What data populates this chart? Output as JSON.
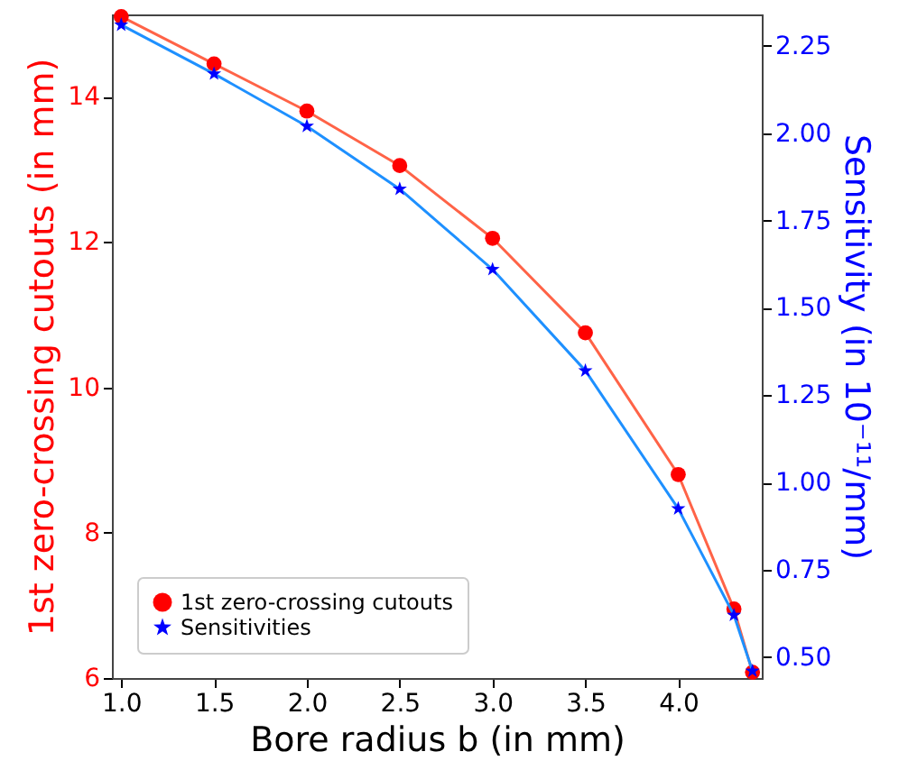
{
  "chart_data": {
    "type": "line",
    "xlabel": "Bore radius b (in mm)",
    "ylabel": "1st zero-crossing cutouts (in mm)",
    "y2label": "Sensitivity (in 10⁻¹¹/mm)",
    "x": [
      1.0,
      1.5,
      2.0,
      2.5,
      3.0,
      3.5,
      4.0,
      4.3,
      4.4
    ],
    "series": [
      {
        "type": "line",
        "color": "#ff6347",
        "marker": "none",
        "values": [
          15.1,
          14.45,
          13.8,
          13.05,
          12.05,
          10.75,
          8.8,
          6.95,
          6.08
        ]
      },
      {
        "type": "scatter",
        "name": "1st zero-crossing cutouts",
        "color": "#ff0000",
        "marker": "circle",
        "values": [
          15.1,
          14.45,
          13.8,
          13.05,
          12.05,
          10.75,
          8.8,
          6.95,
          6.08
        ]
      },
      {
        "type": "line",
        "axis": "y2",
        "color": "#1e90ff",
        "marker": "none",
        "values": [
          2.31,
          2.17,
          2.02,
          1.84,
          1.61,
          1.32,
          0.925,
          0.62,
          0.46
        ]
      },
      {
        "type": "scatter",
        "axis": "y2",
        "name": "Sensitivities",
        "color": "#0000ff",
        "marker": "star",
        "values": [
          2.31,
          2.17,
          2.02,
          1.84,
          1.61,
          1.32,
          0.925,
          0.62,
          0.46
        ]
      }
    ],
    "xlim": [
      0.95,
      4.45
    ],
    "xticks": [
      {
        "value": 1,
        "label": "1.0"
      },
      {
        "value": 1.5,
        "label": "1.5"
      },
      {
        "value": 2,
        "label": "2.0"
      },
      {
        "value": 2.5,
        "label": "2.5"
      },
      {
        "value": 3,
        "label": "3.0"
      },
      {
        "value": 3.5,
        "label": "3.5"
      },
      {
        "value": 4,
        "label": "4.0"
      }
    ],
    "ylim": [
      6,
      15.13
    ],
    "yticks": [
      6,
      8,
      10,
      12,
      14
    ],
    "y2lim": [
      0.44,
      2.34
    ],
    "y2ticks": [
      {
        "value": 0.5,
        "label": "0.50"
      },
      {
        "value": 0.75,
        "label": "0.75"
      },
      {
        "value": 1,
        "label": "1.00"
      },
      {
        "value": 1.25,
        "label": "1.25"
      },
      {
        "value": 1.5,
        "label": "1.50"
      },
      {
        "value": 1.75,
        "label": "1.75"
      },
      {
        "value": 2,
        "label": "2.00"
      },
      {
        "value": 2.25,
        "label": "2.25"
      }
    ],
    "grid": false,
    "legend": "bottom left"
  }
}
